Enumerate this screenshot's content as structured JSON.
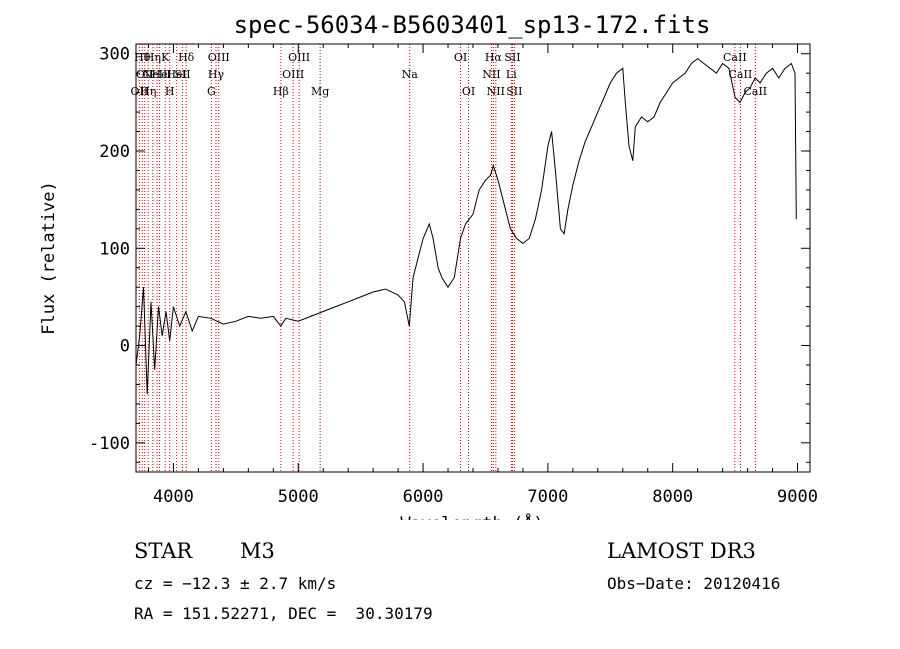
{
  "chart_data": {
    "type": "line",
    "title": "spec-56034-B5603401_sp13-172.fits",
    "xlabel": "Wavelength (Å)",
    "ylabel": "Flux (relative)",
    "xlim": [
      3700,
      9100
    ],
    "ylim": [
      -130,
      310
    ],
    "x_ticks": [
      4000,
      5000,
      6000,
      7000,
      8000,
      9000
    ],
    "y_ticks": [
      -100,
      0,
      100,
      200,
      300
    ],
    "grid": false,
    "line_color": "#000000",
    "marker_color": "#cc0000",
    "series": [
      {
        "x": [
          3700,
          3730,
          3760,
          3790,
          3820,
          3850,
          3880,
          3910,
          3940,
          3970,
          4000,
          4050,
          4100,
          4150,
          4200,
          4300,
          4400,
          4500,
          4600,
          4700,
          4800,
          4860,
          4900,
          5000,
          5100,
          5200,
          5300,
          5400,
          5500,
          5600,
          5700,
          5800,
          5850,
          5890,
          5920,
          5960,
          6000,
          6050,
          6080,
          6120,
          6150,
          6200,
          6250,
          6300,
          6340,
          6400,
          6450,
          6500,
          6540,
          6563,
          6600,
          6650,
          6700,
          6750,
          6800,
          6850,
          6900,
          6950,
          7000,
          7030,
          7060,
          7100,
          7130,
          7160,
          7200,
          7250,
          7300,
          7350,
          7400,
          7450,
          7500,
          7550,
          7600,
          7620,
          7650,
          7680,
          7700,
          7750,
          7800,
          7850,
          7900,
          7950,
          8000,
          8050,
          8100,
          8150,
          8200,
          8250,
          8300,
          8350,
          8400,
          8450,
          8500,
          8540,
          8580,
          8620,
          8660,
          8700,
          8750,
          8800,
          8850,
          8900,
          8950,
          8980,
          8990
        ],
        "y": [
          -20,
          10,
          60,
          -50,
          45,
          -25,
          40,
          10,
          35,
          5,
          40,
          20,
          35,
          15,
          30,
          28,
          22,
          25,
          30,
          28,
          30,
          20,
          28,
          25,
          30,
          35,
          40,
          45,
          50,
          55,
          58,
          52,
          45,
          20,
          70,
          90,
          110,
          125,
          110,
          80,
          70,
          60,
          70,
          110,
          125,
          135,
          160,
          170,
          175,
          185,
          170,
          145,
          120,
          110,
          105,
          110,
          130,
          160,
          205,
          220,
          180,
          120,
          115,
          140,
          165,
          190,
          210,
          225,
          240,
          255,
          270,
          280,
          285,
          250,
          205,
          190,
          225,
          235,
          230,
          235,
          250,
          260,
          270,
          275,
          280,
          290,
          295,
          290,
          285,
          280,
          290,
          285,
          255,
          250,
          260,
          265,
          275,
          270,
          280,
          285,
          275,
          285,
          290,
          280,
          130
        ]
      }
    ],
    "line_markers": [
      {
        "wl": 3727,
        "label": "OII",
        "row": 2
      },
      {
        "wl": 3750,
        "label": "Hθ",
        "row": 0
      },
      {
        "wl": 3770,
        "label": "OII",
        "row": 1
      },
      {
        "wl": 3798,
        "label": "Hη",
        "row": 2
      },
      {
        "wl": 3835,
        "label": "Hη",
        "row": 0
      },
      {
        "wl": 3869,
        "label": "NeIII",
        "row": 1
      },
      {
        "wl": 3889,
        "label": "He",
        "row": 1
      },
      {
        "wl": 3934,
        "label": "K",
        "row": 0
      },
      {
        "wl": 3970,
        "label": "H",
        "row": 2
      },
      {
        "wl": 4026,
        "label": "HeI",
        "row": 1
      },
      {
        "wl": 4072,
        "label": "SII",
        "row": 1
      },
      {
        "wl": 4102,
        "label": "Hδ",
        "row": 0
      },
      {
        "wl": 4304,
        "label": "G",
        "row": 2
      },
      {
        "wl": 4341,
        "label": "Hγ",
        "row": 1
      },
      {
        "wl": 4363,
        "label": "OIII",
        "row": 0
      },
      {
        "wl": 4861,
        "label": "Hβ",
        "row": 2
      },
      {
        "wl": 4959,
        "label": "OIII",
        "row": 1
      },
      {
        "wl": 5007,
        "label": "OIII",
        "row": 0
      },
      {
        "wl": 5175,
        "label": "Mg",
        "row": 2
      },
      {
        "wl": 5893,
        "label": "Na",
        "row": 1
      },
      {
        "wl": 6300,
        "label": "OI",
        "row": 0
      },
      {
        "wl": 6364,
        "label": "OI",
        "row": 2
      },
      {
        "wl": 6548,
        "label": "NII",
        "row": 1
      },
      {
        "wl": 6563,
        "label": "Hα",
        "row": 0
      },
      {
        "wl": 6583,
        "label": "NII",
        "row": 2
      },
      {
        "wl": 6707,
        "label": "Li",
        "row": 1
      },
      {
        "wl": 6716,
        "label": "SII",
        "row": 0
      },
      {
        "wl": 6731,
        "label": "SII",
        "row": 2
      },
      {
        "wl": 8498,
        "label": "CaII",
        "row": 0
      },
      {
        "wl": 8542,
        "label": "CaII",
        "row": 1
      },
      {
        "wl": 8662,
        "label": "CaII",
        "row": 2
      }
    ]
  },
  "info": {
    "object_class": "STAR",
    "subclass": "M3",
    "survey": "LAMOST DR3",
    "cz": "cz = −12.3 ± 2.7 km/s",
    "obs_date": "Obs−Date: 20120416",
    "coords": "RA = 151.52271, DEC =  30.30179"
  }
}
